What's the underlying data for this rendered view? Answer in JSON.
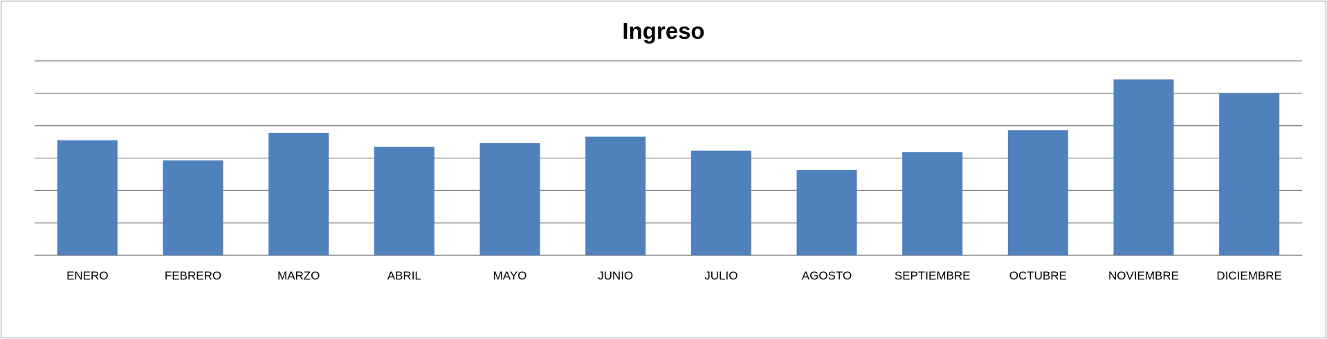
{
  "chart_data": {
    "type": "bar",
    "title": "Ingreso",
    "xlabel": "",
    "ylabel": "",
    "categories": [
      "ENERO",
      "FEBRERO",
      "MARZO",
      "ABRIL",
      "MAYO",
      "JUNIO",
      "JULIO",
      "AGOSTO",
      "SEPTIEMBRE",
      "OCTUBRE",
      "NOVIEMBRE",
      "DICIEMBRE"
    ],
    "values": [
      3.55,
      2.93,
      3.78,
      3.35,
      3.46,
      3.66,
      3.23,
      2.63,
      3.18,
      3.86,
      5.43,
      5.0
    ],
    "ylim": [
      0,
      6
    ],
    "grid": true,
    "legend": "none",
    "bar_color": "#4f81bd",
    "grid_color": "#868686"
  }
}
